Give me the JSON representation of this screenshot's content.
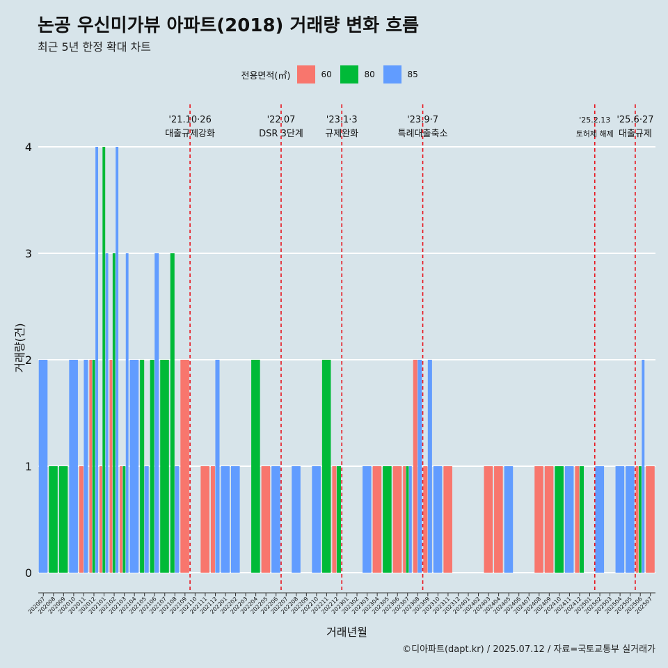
{
  "title": "논공 우신미가뷰 아파트(2018) 거래량 변화 흐름",
  "subtitle": "최근 5년 한정 확대 차트",
  "caption": "©디아파트(dapt.kr) / 2025.07.12 / 자료=국토교통부 실거래가",
  "legend": {
    "title": "전용면적(㎡)",
    "items": [
      {
        "label": "60",
        "color": "#f8766d"
      },
      {
        "label": "80",
        "color": "#00ba38"
      },
      {
        "label": "85",
        "color": "#619cff"
      }
    ]
  },
  "chart_data": {
    "type": "bar",
    "xlabel": "거래년월",
    "ylabel": "거래량(건)",
    "ylim": [
      0,
      4
    ],
    "yticks": [
      0,
      1,
      2,
      3,
      4
    ],
    "grid": true,
    "legend_position": "top",
    "categories": [
      "202007",
      "202008",
      "202009",
      "202010",
      "202011",
      "202012",
      "202101",
      "202102",
      "202103",
      "202104",
      "202105",
      "202106",
      "202107",
      "202108",
      "202109",
      "202110",
      "202111",
      "202112",
      "202201",
      "202202",
      "202203",
      "202204",
      "202205",
      "202206",
      "202207",
      "202208",
      "202209",
      "202210",
      "202211",
      "202212",
      "202301",
      "202302",
      "202303",
      "202304",
      "202305",
      "202306",
      "202307",
      "202308",
      "202309",
      "202310",
      "202311",
      "202312",
      "202401",
      "202402",
      "202403",
      "202404",
      "202405",
      "202406",
      "202407",
      "202408",
      "202409",
      "202410",
      "202411",
      "202412",
      "202501",
      "202502",
      "202503",
      "202504",
      "202505",
      "202506",
      "202507"
    ],
    "bars": [
      {
        "category": "202007",
        "items": [
          {
            "series": "85",
            "value": 2
          }
        ]
      },
      {
        "category": "202008",
        "items": [
          {
            "series": "80",
            "value": 1
          }
        ]
      },
      {
        "category": "202009",
        "items": [
          {
            "series": "80",
            "value": 1
          }
        ]
      },
      {
        "category": "202010",
        "items": [
          {
            "series": "85",
            "value": 2
          }
        ]
      },
      {
        "category": "202011",
        "items": [
          {
            "series": "60",
            "value": 1
          },
          {
            "series": "85",
            "value": 2
          }
        ]
      },
      {
        "category": "202012",
        "items": [
          {
            "series": "60",
            "value": 2
          },
          {
            "series": "80",
            "value": 2
          },
          {
            "series": "85",
            "value": 4
          }
        ]
      },
      {
        "category": "202101",
        "items": [
          {
            "series": "60",
            "value": 1
          },
          {
            "series": "80",
            "value": 4
          },
          {
            "series": "85",
            "value": 3
          }
        ]
      },
      {
        "category": "202102",
        "items": [
          {
            "series": "60",
            "value": 2
          },
          {
            "series": "80",
            "value": 3
          },
          {
            "series": "85",
            "value": 4
          }
        ]
      },
      {
        "category": "202103",
        "items": [
          {
            "series": "60",
            "value": 1
          },
          {
            "series": "80",
            "value": 1
          },
          {
            "series": "85",
            "value": 3
          }
        ]
      },
      {
        "category": "202104",
        "items": [
          {
            "series": "85",
            "value": 2
          }
        ]
      },
      {
        "category": "202105",
        "items": [
          {
            "series": "80",
            "value": 2
          },
          {
            "series": "85",
            "value": 1
          }
        ]
      },
      {
        "category": "202106",
        "items": [
          {
            "series": "80",
            "value": 2
          },
          {
            "series": "85",
            "value": 3
          }
        ]
      },
      {
        "category": "202107",
        "items": [
          {
            "series": "80",
            "value": 2
          }
        ]
      },
      {
        "category": "202108",
        "items": [
          {
            "series": "80",
            "value": 3
          },
          {
            "series": "85",
            "value": 1
          }
        ]
      },
      {
        "category": "202109",
        "items": [
          {
            "series": "60",
            "value": 2
          }
        ]
      },
      {
        "category": "202110",
        "items": []
      },
      {
        "category": "202111",
        "items": [
          {
            "series": "60",
            "value": 1
          }
        ]
      },
      {
        "category": "202112",
        "items": [
          {
            "series": "60",
            "value": 1
          },
          {
            "series": "85",
            "value": 2
          }
        ]
      },
      {
        "category": "202201",
        "items": [
          {
            "series": "85",
            "value": 1
          }
        ]
      },
      {
        "category": "202202",
        "items": [
          {
            "series": "85",
            "value": 1
          }
        ]
      },
      {
        "category": "202203",
        "items": []
      },
      {
        "category": "202204",
        "items": [
          {
            "series": "80",
            "value": 2
          }
        ]
      },
      {
        "category": "202205",
        "items": [
          {
            "series": "60",
            "value": 1
          }
        ]
      },
      {
        "category": "202206",
        "items": [
          {
            "series": "85",
            "value": 1
          }
        ]
      },
      {
        "category": "202207",
        "items": []
      },
      {
        "category": "202208",
        "items": [
          {
            "series": "85",
            "value": 1
          }
        ]
      },
      {
        "category": "202209",
        "items": []
      },
      {
        "category": "202210",
        "items": [
          {
            "series": "85",
            "value": 1
          }
        ]
      },
      {
        "category": "202211",
        "items": [
          {
            "series": "80",
            "value": 2
          }
        ]
      },
      {
        "category": "202212",
        "items": [
          {
            "series": "60",
            "value": 1
          },
          {
            "series": "80",
            "value": 1
          }
        ]
      },
      {
        "category": "202301",
        "items": []
      },
      {
        "category": "202302",
        "items": []
      },
      {
        "category": "202303",
        "items": [
          {
            "series": "85",
            "value": 1
          }
        ]
      },
      {
        "category": "202304",
        "items": [
          {
            "series": "60",
            "value": 1
          }
        ]
      },
      {
        "category": "202305",
        "items": [
          {
            "series": "80",
            "value": 1
          }
        ]
      },
      {
        "category": "202306",
        "items": [
          {
            "series": "60",
            "value": 1
          }
        ]
      },
      {
        "category": "202307",
        "items": [
          {
            "series": "60",
            "value": 1
          },
          {
            "series": "80",
            "value": 1
          },
          {
            "series": "85",
            "value": 1
          }
        ]
      },
      {
        "category": "202308",
        "items": [
          {
            "series": "60",
            "value": 2
          },
          {
            "series": "85",
            "value": 2
          }
        ]
      },
      {
        "category": "202309",
        "items": [
          {
            "series": "60",
            "value": 1
          },
          {
            "series": "85",
            "value": 2
          }
        ]
      },
      {
        "category": "202310",
        "items": [
          {
            "series": "85",
            "value": 1
          }
        ]
      },
      {
        "category": "202311",
        "items": [
          {
            "series": "60",
            "value": 1
          }
        ]
      },
      {
        "category": "202312",
        "items": []
      },
      {
        "category": "202401",
        "items": []
      },
      {
        "category": "202402",
        "items": []
      },
      {
        "category": "202403",
        "items": [
          {
            "series": "60",
            "value": 1
          }
        ]
      },
      {
        "category": "202404",
        "items": [
          {
            "series": "60",
            "value": 1
          }
        ]
      },
      {
        "category": "202405",
        "items": [
          {
            "series": "85",
            "value": 1
          }
        ]
      },
      {
        "category": "202406",
        "items": []
      },
      {
        "category": "202407",
        "items": []
      },
      {
        "category": "202408",
        "items": [
          {
            "series": "60",
            "value": 1
          }
        ]
      },
      {
        "category": "202409",
        "items": [
          {
            "series": "60",
            "value": 1
          }
        ]
      },
      {
        "category": "202410",
        "items": [
          {
            "series": "80",
            "value": 1
          }
        ]
      },
      {
        "category": "202411",
        "items": [
          {
            "series": "85",
            "value": 1
          }
        ]
      },
      {
        "category": "202412",
        "items": [
          {
            "series": "60",
            "value": 1
          },
          {
            "series": "80",
            "value": 1
          }
        ]
      },
      {
        "category": "202501",
        "items": []
      },
      {
        "category": "202502",
        "items": [
          {
            "series": "85",
            "value": 1
          }
        ]
      },
      {
        "category": "202503",
        "items": []
      },
      {
        "category": "202504",
        "items": [
          {
            "series": "85",
            "value": 1
          }
        ]
      },
      {
        "category": "202505",
        "items": [
          {
            "series": "85",
            "value": 1
          }
        ]
      },
      {
        "category": "202506",
        "items": [
          {
            "series": "60",
            "value": 1
          },
          {
            "series": "80",
            "value": 1
          },
          {
            "series": "85",
            "value": 2
          }
        ]
      },
      {
        "category": "202507",
        "items": [
          {
            "series": "60",
            "value": 1
          }
        ]
      }
    ],
    "annotations": [
      {
        "at": "202110",
        "date": "'21.10·26",
        "label": "대출규제강화"
      },
      {
        "at": "202207",
        "date": "'22.07",
        "label": "DSR 3단계"
      },
      {
        "at": "202301",
        "date": "'23.1·3",
        "label": "규제완화"
      },
      {
        "at": "202309",
        "date": "'23.9·7",
        "label": "특례대출축소"
      },
      {
        "at": "202502",
        "date": "'25.2.13",
        "label": "토허제 해제"
      },
      {
        "at": "202506",
        "date": "'25.6·27",
        "label": "대출규제"
      }
    ]
  }
}
